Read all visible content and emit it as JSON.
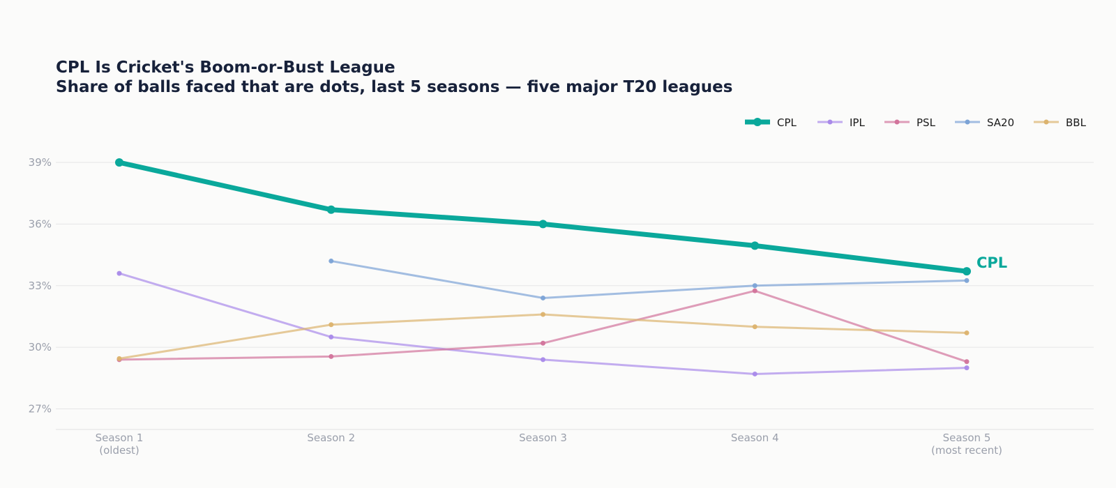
{
  "chart_data": {
    "type": "line",
    "title": "CPL Is Cricket's Boom-or-Bust League",
    "subtitle": "Share of balls faced that are dots, last 5 seasons — five major T20 leagues",
    "categories": [
      [
        "Season 1",
        "(oldest)"
      ],
      [
        "Season 2"
      ],
      [
        "Season 3"
      ],
      [
        "Season 4"
      ],
      [
        "Season 5",
        "(most recent)"
      ]
    ],
    "ylim": [
      26,
      40.8
    ],
    "yticks": [
      27,
      30,
      33,
      36,
      39
    ],
    "ytick_labels": [
      "27%",
      "30%",
      "33%",
      "36%",
      "39%"
    ],
    "grid": true,
    "legend_position": "top-right",
    "series": [
      {
        "name": "IPL",
        "color": "#a98ae9",
        "values": [
          33.6,
          30.5,
          29.4,
          28.7,
          29.0
        ]
      },
      {
        "name": "PSL",
        "color": "#d2749b",
        "values": [
          29.4,
          29.55,
          30.2,
          32.75,
          29.3
        ]
      },
      {
        "name": "SA20",
        "color": "#7ca3d6",
        "values": [
          null,
          34.2,
          32.4,
          33.0,
          33.25
        ]
      },
      {
        "name": "BBL",
        "color": "#dcb36e",
        "values": [
          29.45,
          31.1,
          31.6,
          31.0,
          30.7
        ]
      },
      {
        "name": "CPL",
        "color": "#0aa89b",
        "values": [
          39.0,
          36.7,
          36.0,
          34.95,
          33.7
        ],
        "highlight": true,
        "end_label": "CPL"
      }
    ],
    "legend_order": [
      "CPL",
      "IPL",
      "PSL",
      "SA20",
      "BBL"
    ]
  }
}
